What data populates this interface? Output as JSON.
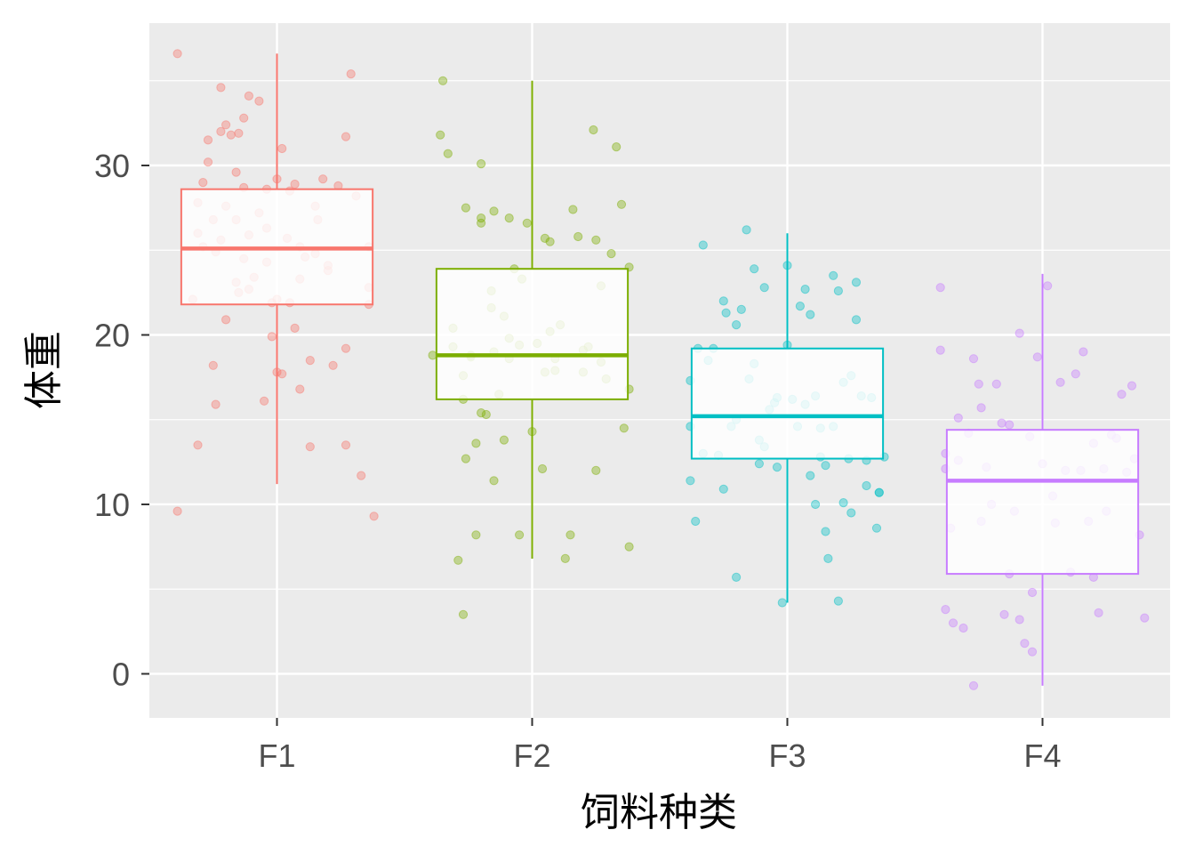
{
  "chart_data": {
    "type": "boxplot",
    "xlabel": "饲料种类",
    "ylabel": "体重",
    "categories": [
      "F1",
      "F2",
      "F3",
      "F4"
    ],
    "ylim": [
      -2.6,
      38.4
    ],
    "y_ticks": [
      0,
      10,
      20,
      30
    ],
    "grid": true,
    "legend": "none",
    "colors": [
      "#F8766D",
      "#7CAE00",
      "#00BFC4",
      "#C77CFF"
    ],
    "panel_background": "#EBEBEB",
    "boxes": [
      {
        "category": "F1",
        "whisker_low": 11.2,
        "q1": 21.8,
        "median": 25.1,
        "q3": 28.6,
        "whisker_high": 36.6
      },
      {
        "category": "F2",
        "whisker_low": 6.8,
        "q1": 16.2,
        "median": 18.8,
        "q3": 23.9,
        "whisker_high": 35.0
      },
      {
        "category": "F3",
        "whisker_low": 4.2,
        "q1": 12.7,
        "median": 15.2,
        "q3": 19.2,
        "whisker_high": 26.0
      },
      {
        "category": "F4",
        "whisker_low": -0.7,
        "q1": 5.9,
        "median": 11.4,
        "q3": 14.4,
        "whisker_high": 23.6
      }
    ],
    "points": [
      {
        "category": "F1",
        "x_offset": [
          -0.39,
          -0.39,
          -0.33,
          -0.31,
          -0.31,
          -0.31,
          -0.29,
          -0.29,
          -0.27,
          -0.27,
          -0.25,
          -0.25,
          -0.24,
          -0.24,
          -0.22,
          -0.22,
          -0.22,
          -0.2,
          -0.2,
          -0.2,
          -0.18,
          -0.16,
          -0.16,
          -0.16,
          -0.15,
          -0.15,
          -0.13,
          -0.13,
          -0.13,
          -0.11,
          -0.11,
          -0.11,
          -0.09,
          -0.07,
          -0.07,
          -0.05,
          -0.04,
          -0.04,
          -0.04,
          -0.02,
          -0.02,
          0.0,
          0.0,
          0.0,
          0.02,
          0.02,
          0.04,
          0.05,
          0.05,
          0.07,
          0.07,
          0.09,
          0.09,
          0.09,
          0.11,
          0.13,
          0.13,
          0.15,
          0.15,
          0.16,
          0.18,
          0.2,
          0.2,
          0.22,
          0.24,
          0.27,
          0.27,
          0.27,
          0.29,
          0.31,
          0.33,
          0.36,
          0.36,
          0.36,
          0.38
        ],
        "y": [
          36.6,
          9.6,
          22.1,
          26.0,
          13.5,
          27.8,
          25.2,
          29.0,
          30.2,
          31.5,
          18.2,
          26.8,
          15.9,
          24.9,
          34.6,
          32.0,
          25.6,
          32.4,
          27.6,
          20.9,
          31.8,
          29.6,
          26.8,
          23.1,
          22.5,
          31.9,
          28.7,
          32.8,
          24.5,
          22.7,
          34.1,
          25.9,
          23.4,
          33.8,
          27.2,
          16.1,
          28.6,
          24.3,
          26.3,
          21.9,
          19.9,
          17.8,
          29.2,
          22.1,
          17.7,
          31.0,
          25.7,
          28.5,
          21.9,
          28.9,
          20.4,
          25.2,
          23.3,
          16.8,
          24.6,
          18.5,
          13.4,
          27.6,
          24.8,
          26.8,
          29.2,
          24.1,
          23.8,
          18.2,
          28.8,
          31.7,
          19.2,
          13.5,
          35.4,
          28.2,
          11.7,
          25.2,
          22.8,
          21.8,
          9.3
        ]
      },
      {
        "category": "F2",
        "x_offset": [
          -0.39,
          -0.36,
          -0.35,
          -0.33,
          -0.31,
          -0.31,
          -0.29,
          -0.27,
          -0.27,
          -0.27,
          -0.26,
          -0.26,
          -0.24,
          -0.24,
          -0.22,
          -0.22,
          -0.2,
          -0.2,
          -0.2,
          -0.2,
          -0.18,
          -0.16,
          -0.16,
          -0.15,
          -0.15,
          -0.15,
          -0.13,
          -0.11,
          -0.11,
          -0.09,
          -0.09,
          -0.09,
          -0.07,
          -0.05,
          -0.05,
          -0.04,
          -0.02,
          0.0,
          0.02,
          0.04,
          0.05,
          0.05,
          0.07,
          0.07,
          0.09,
          0.09,
          0.11,
          0.13,
          0.15,
          0.16,
          0.18,
          0.2,
          0.2,
          0.22,
          0.24,
          0.25,
          0.25,
          0.27,
          0.27,
          0.29,
          0.31,
          0.33,
          0.35,
          0.36,
          0.38,
          0.38,
          0.38
        ],
        "y": [
          18.8,
          31.8,
          35.0,
          30.7,
          19.3,
          20.4,
          6.7,
          16.2,
          3.5,
          17.6,
          12.7,
          27.5,
          18.8,
          18.7,
          8.2,
          13.6,
          15.4,
          26.6,
          26.9,
          30.1,
          15.3,
          22.6,
          21.6,
          19.0,
          11.4,
          27.3,
          16.5,
          13.8,
          21.1,
          26.9,
          18.6,
          19.8,
          23.9,
          8.2,
          19.4,
          23.3,
          26.6,
          14.3,
          19.5,
          12.1,
          17.8,
          25.7,
          25.5,
          20.2,
          18.6,
          17.9,
          20.6,
          6.8,
          8.2,
          27.4,
          25.8,
          19.1,
          17.8,
          19.3,
          32.1,
          25.6,
          12.0,
          18.4,
          22.9,
          17.4,
          24.8,
          31.1,
          27.7,
          14.5,
          16.8,
          7.5,
          24.0
        ]
      },
      {
        "category": "F3",
        "x_offset": [
          -0.38,
          -0.38,
          -0.38,
          -0.36,
          -0.35,
          -0.33,
          -0.33,
          -0.31,
          -0.29,
          -0.27,
          -0.25,
          -0.25,
          -0.24,
          -0.22,
          -0.2,
          -0.2,
          -0.2,
          -0.18,
          -0.16,
          -0.15,
          -0.13,
          -0.13,
          -0.11,
          -0.11,
          -0.09,
          -0.09,
          -0.07,
          -0.05,
          -0.04,
          -0.04,
          -0.02,
          0.0,
          0.0,
          0.02,
          0.04,
          0.05,
          0.07,
          0.07,
          0.09,
          0.09,
          0.11,
          0.11,
          0.13,
          0.13,
          0.15,
          0.15,
          0.16,
          0.18,
          0.18,
          0.2,
          0.2,
          0.22,
          0.22,
          0.24,
          0.25,
          0.25,
          0.27,
          0.27,
          0.29,
          0.31,
          0.31,
          0.33,
          0.35,
          0.36,
          0.36,
          0.38
        ],
        "y": [
          17.3,
          14.6,
          11.4,
          9.0,
          19.2,
          13.0,
          25.3,
          18.5,
          19.2,
          12.9,
          10.9,
          22.0,
          21.3,
          14.6,
          15.0,
          5.7,
          20.6,
          21.5,
          26.2,
          17.4,
          23.9,
          18.3,
          12.4,
          13.8,
          22.8,
          13.4,
          15.6,
          16.0,
          16.3,
          12.2,
          4.2,
          24.1,
          19.4,
          16.2,
          14.6,
          21.7,
          22.7,
          15.9,
          21.2,
          11.7,
          16.4,
          10.0,
          14.5,
          12.8,
          12.3,
          8.4,
          6.8,
          23.5,
          14.6,
          22.6,
          4.3,
          17.2,
          10.1,
          12.7,
          17.6,
          9.5,
          23.1,
          20.9,
          16.4,
          11.1,
          12.6,
          16.3,
          8.6,
          10.7,
          10.7,
          12.8
        ]
      },
      {
        "category": "F4",
        "x_offset": [
          -0.4,
          -0.4,
          -0.38,
          -0.38,
          -0.38,
          -0.36,
          -0.35,
          -0.33,
          -0.33,
          -0.31,
          -0.29,
          -0.27,
          -0.27,
          -0.25,
          -0.24,
          -0.24,
          -0.22,
          -0.2,
          -0.18,
          -0.16,
          -0.15,
          -0.13,
          -0.13,
          -0.11,
          -0.09,
          -0.09,
          -0.07,
          -0.05,
          -0.04,
          -0.04,
          -0.02,
          0.0,
          0.02,
          0.04,
          0.05,
          0.07,
          0.09,
          0.11,
          0.13,
          0.15,
          0.16,
          0.18,
          0.2,
          0.2,
          0.22,
          0.24,
          0.25,
          0.27,
          0.29,
          0.31,
          0.33,
          0.35,
          0.36,
          0.38,
          0.4
        ],
        "y": [
          22.8,
          19.1,
          13.0,
          12.1,
          3.8,
          8.6,
          3.0,
          15.1,
          12.6,
          2.7,
          14.2,
          -0.7,
          18.6,
          17.1,
          9.0,
          15.7,
          12.2,
          10.0,
          17.1,
          14.8,
          3.5,
          5.9,
          14.7,
          9.6,
          3.2,
          20.1,
          1.8,
          14.0,
          4.8,
          1.3,
          18.7,
          12.4,
          22.9,
          10.5,
          8.9,
          17.2,
          12.0,
          6.0,
          17.7,
          12.0,
          19.0,
          9.0,
          5.7,
          13.6,
          3.6,
          12.1,
          9.6,
          14.1,
          13.9,
          16.5,
          11.9,
          17.0,
          12.7,
          8.2,
          3.3
        ]
      }
    ]
  }
}
